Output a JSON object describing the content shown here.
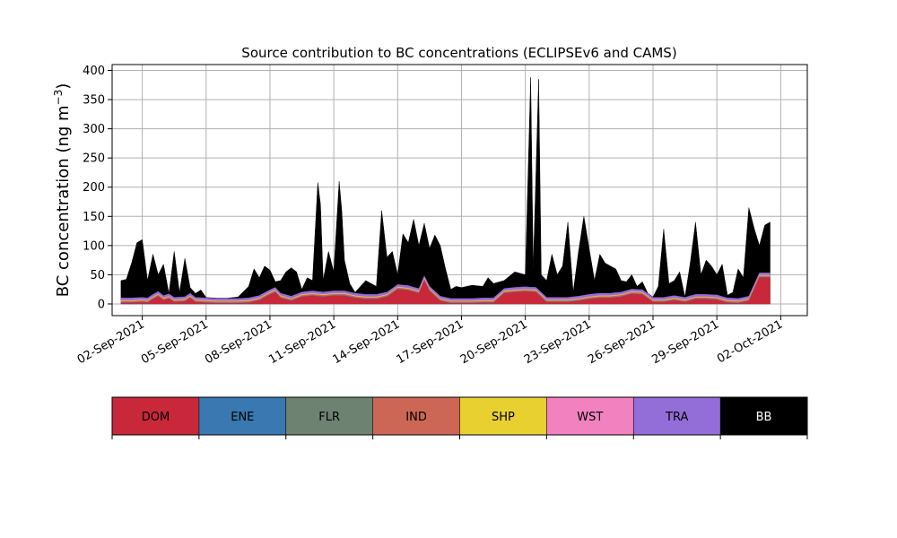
{
  "chart_data": {
    "type": "area",
    "title": "Source contribution to BC concentrations (ECLIPSEv6 and CAMS)",
    "xlabel": "",
    "ylabel_main": "BC concentration (ng m",
    "ylabel_sup": "−3",
    "ylabel_close": ")",
    "ylim": [
      -20,
      410
    ],
    "yticks": [
      0,
      50,
      100,
      150,
      200,
      250,
      300,
      350,
      400
    ],
    "xlim_days": [
      "2021-08-31T14:00",
      "2021-10-03T06:00"
    ],
    "xticks": [
      "02-Sep-2021",
      "05-Sep-2021",
      "08-Sep-2021",
      "11-Sep-2021",
      "14-Sep-2021",
      "17-Sep-2021",
      "20-Sep-2021",
      "23-Sep-2021",
      "26-Sep-2021",
      "29-Sep-2021",
      "02-Oct-2021"
    ],
    "grid": true,
    "legend_placement": "below",
    "series": [
      {
        "name": "DOM",
        "color": "#c8283a"
      },
      {
        "name": "ENE",
        "color": "#3978b0"
      },
      {
        "name": "FLR",
        "color": "#6e8272"
      },
      {
        "name": "IND",
        "color": "#cc6756"
      },
      {
        "name": "SHP",
        "color": "#e8d030"
      },
      {
        "name": "WST",
        "color": "#f182bf"
      },
      {
        "name": "TRA",
        "color": "#946ed8"
      },
      {
        "name": "BB",
        "color": "#000000"
      }
    ],
    "dom_points": [
      [
        "2021-09-01T00:00",
        2
      ],
      [
        "2021-09-01T12:00",
        2
      ],
      [
        "2021-09-02T00:00",
        3
      ],
      [
        "2021-09-02T06:00",
        2
      ],
      [
        "2021-09-02T12:00",
        8
      ],
      [
        "2021-09-02T18:00",
        13
      ],
      [
        "2021-09-03T00:00",
        6
      ],
      [
        "2021-09-03T06:00",
        9
      ],
      [
        "2021-09-03T12:00",
        3
      ],
      [
        "2021-09-04T00:00",
        4
      ],
      [
        "2021-09-04T06:00",
        10
      ],
      [
        "2021-09-04T12:00",
        3
      ],
      [
        "2021-09-05T00:00",
        2
      ],
      [
        "2021-09-05T12:00",
        1
      ],
      [
        "2021-09-06T00:00",
        1
      ],
      [
        "2021-09-06T12:00",
        1
      ],
      [
        "2021-09-07T00:00",
        2
      ],
      [
        "2021-09-07T12:00",
        6
      ],
      [
        "2021-09-08T00:00",
        16
      ],
      [
        "2021-09-08T06:00",
        20
      ],
      [
        "2021-09-08T12:00",
        10
      ],
      [
        "2021-09-09T00:00",
        5
      ],
      [
        "2021-09-09T12:00",
        12
      ],
      [
        "2021-09-10T00:00",
        14
      ],
      [
        "2021-09-10T12:00",
        12
      ],
      [
        "2021-09-11T00:00",
        14
      ],
      [
        "2021-09-11T12:00",
        14
      ],
      [
        "2021-09-12T00:00",
        10
      ],
      [
        "2021-09-12T12:00",
        8
      ],
      [
        "2021-09-13T00:00",
        8
      ],
      [
        "2021-09-13T12:00",
        12
      ],
      [
        "2021-09-14T00:00",
        25
      ],
      [
        "2021-09-14T12:00",
        23
      ],
      [
        "2021-09-15T00:00",
        18
      ],
      [
        "2021-09-15T06:00",
        40
      ],
      [
        "2021-09-15T12:00",
        22
      ],
      [
        "2021-09-16T00:00",
        5
      ],
      [
        "2021-09-16T12:00",
        1
      ],
      [
        "2021-09-17T00:00",
        1
      ],
      [
        "2021-09-17T12:00",
        1
      ],
      [
        "2021-09-18T00:00",
        2
      ],
      [
        "2021-09-18T12:00",
        2
      ],
      [
        "2021-09-19T00:00",
        18
      ],
      [
        "2021-09-19T12:00",
        20
      ],
      [
        "2021-09-20T00:00",
        21
      ],
      [
        "2021-09-20T12:00",
        20
      ],
      [
        "2021-09-21T00:00",
        3
      ],
      [
        "2021-09-21T12:00",
        3
      ],
      [
        "2021-09-22T00:00",
        3
      ],
      [
        "2021-09-22T12:00",
        5
      ],
      [
        "2021-09-23T00:00",
        8
      ],
      [
        "2021-09-23T12:00",
        10
      ],
      [
        "2021-09-24T00:00",
        10
      ],
      [
        "2021-09-24T12:00",
        12
      ],
      [
        "2021-09-25T00:00",
        17
      ],
      [
        "2021-09-25T12:00",
        16
      ],
      [
        "2021-09-26T00:00",
        3
      ],
      [
        "2021-09-26T12:00",
        3
      ],
      [
        "2021-09-27T00:00",
        6
      ],
      [
        "2021-09-27T12:00",
        3
      ],
      [
        "2021-09-28T00:00",
        8
      ],
      [
        "2021-09-28T12:00",
        8
      ],
      [
        "2021-09-29T00:00",
        7
      ],
      [
        "2021-09-29T12:00",
        2
      ],
      [
        "2021-09-30T00:00",
        1
      ],
      [
        "2021-09-30T12:00",
        5
      ],
      [
        "2021-10-01T00:00",
        45
      ],
      [
        "2021-10-01T12:00",
        45
      ]
    ],
    "total_points": [
      [
        "2021-09-01T00:00",
        40
      ],
      [
        "2021-09-01T06:00",
        42
      ],
      [
        "2021-09-01T12:00",
        70
      ],
      [
        "2021-09-01T18:00",
        105
      ],
      [
        "2021-09-02T00:00",
        110
      ],
      [
        "2021-09-02T06:00",
        40
      ],
      [
        "2021-09-02T12:00",
        85
      ],
      [
        "2021-09-02T18:00",
        50
      ],
      [
        "2021-09-03T00:00",
        68
      ],
      [
        "2021-09-03T06:00",
        15
      ],
      [
        "2021-09-03T12:00",
        90
      ],
      [
        "2021-09-03T18:00",
        20
      ],
      [
        "2021-09-04T00:00",
        78
      ],
      [
        "2021-09-04T06:00",
        28
      ],
      [
        "2021-09-04T12:00",
        18
      ],
      [
        "2021-09-04T18:00",
        24
      ],
      [
        "2021-09-05T00:00",
        8
      ],
      [
        "2021-09-05T12:00",
        4
      ],
      [
        "2021-09-06T00:00",
        10
      ],
      [
        "2021-09-06T12:00",
        12
      ],
      [
        "2021-09-07T00:00",
        30
      ],
      [
        "2021-09-07T06:00",
        60
      ],
      [
        "2021-09-07T12:00",
        45
      ],
      [
        "2021-09-07T18:00",
        65
      ],
      [
        "2021-09-08T00:00",
        58
      ],
      [
        "2021-09-08T06:00",
        38
      ],
      [
        "2021-09-08T12:00",
        40
      ],
      [
        "2021-09-08T18:00",
        55
      ],
      [
        "2021-09-09T00:00",
        62
      ],
      [
        "2021-09-09T06:00",
        55
      ],
      [
        "2021-09-09T12:00",
        25
      ],
      [
        "2021-09-09T18:00",
        45
      ],
      [
        "2021-09-10T00:00",
        40
      ],
      [
        "2021-09-10T06:00",
        208
      ],
      [
        "2021-09-10T09:00",
        170
      ],
      [
        "2021-09-10T12:00",
        40
      ],
      [
        "2021-09-10T18:00",
        90
      ],
      [
        "2021-09-11T00:00",
        55
      ],
      [
        "2021-09-11T06:00",
        210
      ],
      [
        "2021-09-11T09:00",
        160
      ],
      [
        "2021-09-11T12:00",
        75
      ],
      [
        "2021-09-11T18:00",
        35
      ],
      [
        "2021-09-12T00:00",
        20
      ],
      [
        "2021-09-12T12:00",
        40
      ],
      [
        "2021-09-13T00:00",
        30
      ],
      [
        "2021-09-13T06:00",
        160
      ],
      [
        "2021-09-13T12:00",
        80
      ],
      [
        "2021-09-13T18:00",
        90
      ],
      [
        "2021-09-14T00:00",
        50
      ],
      [
        "2021-09-14T06:00",
        120
      ],
      [
        "2021-09-14T12:00",
        105
      ],
      [
        "2021-09-14T18:00",
        145
      ],
      [
        "2021-09-15T00:00",
        100
      ],
      [
        "2021-09-15T06:00",
        138
      ],
      [
        "2021-09-15T12:00",
        95
      ],
      [
        "2021-09-15T18:00",
        118
      ],
      [
        "2021-09-16T00:00",
        100
      ],
      [
        "2021-09-16T06:00",
        60
      ],
      [
        "2021-09-16T12:00",
        25
      ],
      [
        "2021-09-16T18:00",
        30
      ],
      [
        "2021-09-17T00:00",
        28
      ],
      [
        "2021-09-17T12:00",
        32
      ],
      [
        "2021-09-18T00:00",
        30
      ],
      [
        "2021-09-18T06:00",
        45
      ],
      [
        "2021-09-18T12:00",
        35
      ],
      [
        "2021-09-19T00:00",
        40
      ],
      [
        "2021-09-19T12:00",
        55
      ],
      [
        "2021-09-20T00:00",
        50
      ],
      [
        "2021-09-20T06:00",
        388
      ],
      [
        "2021-09-20T09:00",
        60
      ],
      [
        "2021-09-20T15:00",
        385
      ],
      [
        "2021-09-20T18:00",
        50
      ],
      [
        "2021-09-21T00:00",
        40
      ],
      [
        "2021-09-21T06:00",
        85
      ],
      [
        "2021-09-21T12:00",
        50
      ],
      [
        "2021-09-21T18:00",
        65
      ],
      [
        "2021-09-22T00:00",
        140
      ],
      [
        "2021-09-22T06:00",
        20
      ],
      [
        "2021-09-22T12:00",
        90
      ],
      [
        "2021-09-22T18:00",
        150
      ],
      [
        "2021-09-23T00:00",
        95
      ],
      [
        "2021-09-23T06:00",
        40
      ],
      [
        "2021-09-23T12:00",
        85
      ],
      [
        "2021-09-23T18:00",
        70
      ],
      [
        "2021-09-24T00:00",
        65
      ],
      [
        "2021-09-24T06:00",
        60
      ],
      [
        "2021-09-24T12:00",
        40
      ],
      [
        "2021-09-24T18:00",
        38
      ],
      [
        "2021-09-25T00:00",
        50
      ],
      [
        "2021-09-25T06:00",
        30
      ],
      [
        "2021-09-25T12:00",
        38
      ],
      [
        "2021-09-25T18:00",
        15
      ],
      [
        "2021-09-26T00:00",
        10
      ],
      [
        "2021-09-26T06:00",
        30
      ],
      [
        "2021-09-26T12:00",
        128
      ],
      [
        "2021-09-26T18:00",
        35
      ],
      [
        "2021-09-27T00:00",
        40
      ],
      [
        "2021-09-27T06:00",
        55
      ],
      [
        "2021-09-27T12:00",
        10
      ],
      [
        "2021-09-27T18:00",
        70
      ],
      [
        "2021-09-28T00:00",
        140
      ],
      [
        "2021-09-28T06:00",
        50
      ],
      [
        "2021-09-28T12:00",
        75
      ],
      [
        "2021-09-28T18:00",
        65
      ],
      [
        "2021-09-29T00:00",
        50
      ],
      [
        "2021-09-29T06:00",
        68
      ],
      [
        "2021-09-29T12:00",
        15
      ],
      [
        "2021-09-29T18:00",
        20
      ],
      [
        "2021-09-30T00:00",
        60
      ],
      [
        "2021-09-30T06:00",
        45
      ],
      [
        "2021-09-30T12:00",
        165
      ],
      [
        "2021-09-30T18:00",
        130
      ],
      [
        "2021-10-01T00:00",
        100
      ],
      [
        "2021-10-01T06:00",
        135
      ],
      [
        "2021-10-01T12:00",
        140
      ]
    ]
  }
}
